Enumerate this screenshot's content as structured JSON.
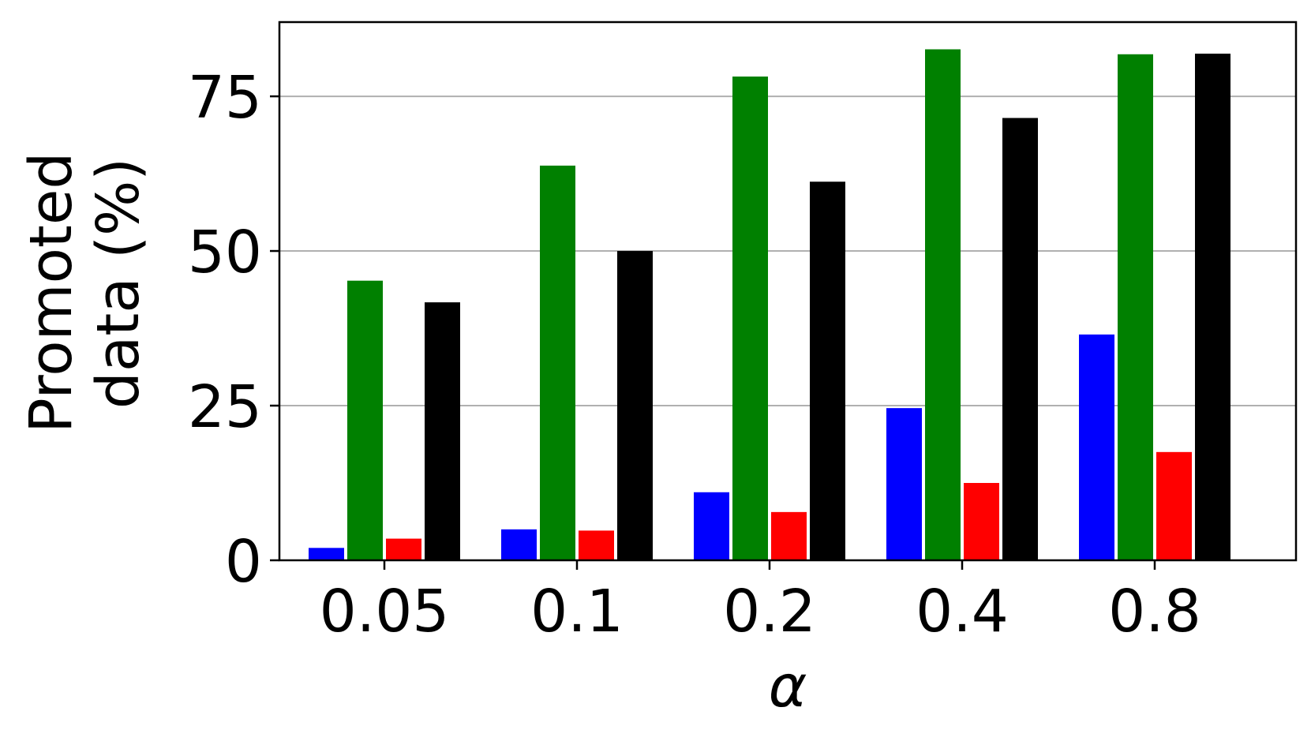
{
  "chart_data": {
    "type": "bar",
    "title": "",
    "xlabel": "α",
    "ylabel": [
      "Promoted",
      "data (%)"
    ],
    "categories": [
      "0.05",
      "0.1",
      "0.2",
      "0.4",
      "0.8"
    ],
    "y_ticks": [
      "0",
      "25",
      "50",
      "75"
    ],
    "ylim": [
      0,
      87
    ],
    "grid": "horizontal",
    "legend": "none",
    "series": [
      {
        "color": "#0000ff",
        "values": [
          2,
          5,
          11,
          24.6,
          36.5
        ]
      },
      {
        "color": "#008000",
        "values": [
          45.2,
          63.8,
          78.2,
          82.6,
          81.8
        ]
      },
      {
        "color": "#ff0000",
        "values": [
          3.5,
          4.8,
          7.8,
          12.5,
          17.5
        ]
      },
      {
        "color": "#000000",
        "values": [
          41.7,
          50,
          61.2,
          71.5,
          81.9
        ]
      }
    ]
  }
}
